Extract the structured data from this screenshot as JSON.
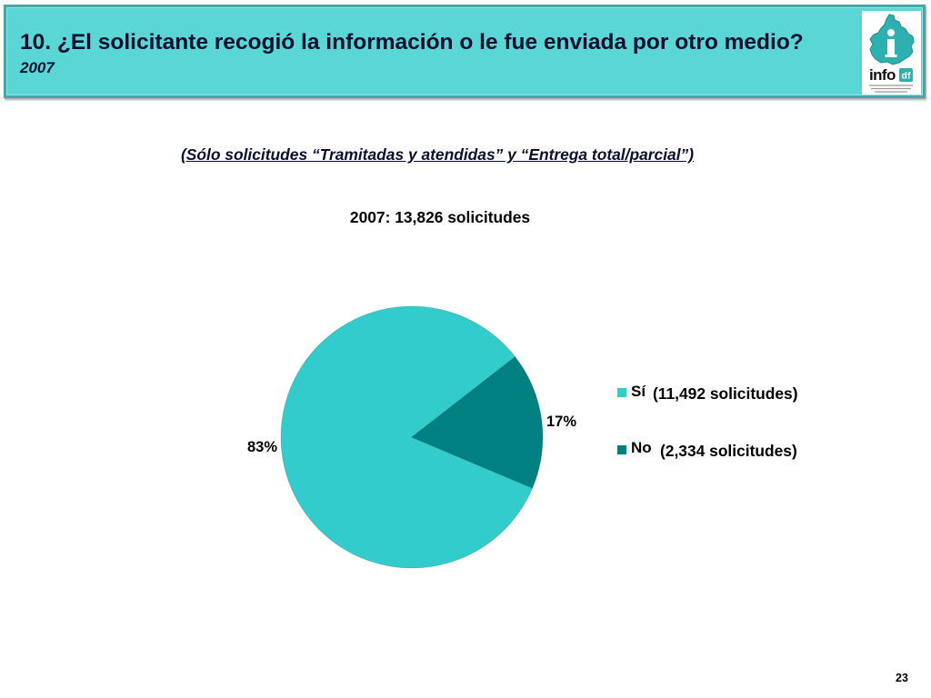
{
  "slide": {
    "title": "10. ¿El solicitante recogió la información o le fue enviada por otro medio?",
    "year": "2007",
    "note": "(Sólo solicitudes “Tramitadas y atendidas” y “Entrega total/parcial”)",
    "page_number": "23"
  },
  "logo": {
    "icon": "map-logo-icon",
    "word": "info",
    "suffix": "df"
  },
  "colors": {
    "banner": "#5bd6d6",
    "title_text": "#0b0f2e",
    "logo_teal": "#2fb0b0"
  },
  "chart_data": {
    "type": "pie",
    "title": "2007: 13,826 solicitudes",
    "legend_position": "right",
    "slices": [
      {
        "label": "Sí",
        "value": 11492,
        "percent_label": "83%",
        "count_label": "(11,492 solicitudes)",
        "color": "#33cccc"
      },
      {
        "label": "No",
        "value": 2334,
        "percent_label": "17%",
        "count_label": "(2,334 solicitudes)",
        "color": "#008080"
      }
    ]
  }
}
